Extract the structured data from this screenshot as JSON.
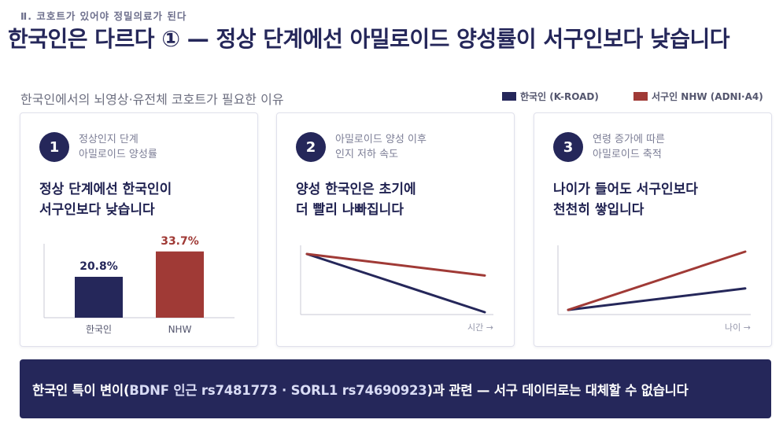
{
  "section_label": "Ⅱ. 코호트가 있어야 정밀의료가 된다",
  "title": "한국인은 다르다 ① — 정상 단계에선 아밀로이드 양성률이 서구인보다 낮습니다",
  "subtitle": "한국인에서의 뇌영상·유전체 코호트가 필요한 이유",
  "legend": [
    {
      "label": "한국인 (K-ROAD)",
      "color": "#25275a"
    },
    {
      "label": "서구인 NHW (ADNI·A4)",
      "color": "#a03a36"
    }
  ],
  "cards": [
    {
      "number": "1",
      "label": "정상인지 단계\n아밀로이드 양성률",
      "headline": "정상 단계에선 한국인이\n서구인보다 낮습니다"
    },
    {
      "number": "2",
      "label": "아밀로이드 양성 이후\n인지 저하 속도",
      "headline": "양성 한국인은 초기에\n더 빨리 나빠집니다",
      "x_axis_label": "시간 →"
    },
    {
      "number": "3",
      "label": "연령 증가에 따른\n아밀로이드 축적",
      "headline": "나이가 들어도 서구인보다\n천천히 쌓입니다",
      "x_axis_label": "나이 →"
    }
  ],
  "chart_data": [
    {
      "type": "bar",
      "categories": [
        "한국인",
        "NHW"
      ],
      "values": [
        20.8,
        33.7
      ],
      "value_labels": [
        "20.8%",
        "33.7%"
      ],
      "colors": [
        "#25275a",
        "#a03a36"
      ],
      "ylim": [
        0,
        40
      ]
    },
    {
      "type": "line",
      "xlabel": "시간 →",
      "x": [
        0,
        1
      ],
      "series": [
        {
          "values": [
            1.0,
            0.0
          ],
          "color": "#25275a"
        },
        {
          "values": [
            1.0,
            0.63
          ],
          "color": "#a03a36"
        }
      ],
      "ylim": [
        0,
        1
      ]
    },
    {
      "type": "line",
      "xlabel": "나이 →",
      "x": [
        0,
        1
      ],
      "series": [
        {
          "values": [
            0.05,
            0.4
          ],
          "color": "#25275a"
        },
        {
          "values": [
            0.05,
            1.0
          ],
          "color": "#a03a36"
        }
      ],
      "ylim": [
        0,
        1
      ]
    }
  ],
  "banner": {
    "prefix": "한국인 특이 변이(",
    "highlight": "BDNF 인근 rs7481773 · SORL1 rs74690923",
    "suffix": ")과 관련 — 서구 데이터로는 대체할 수 없습니다"
  }
}
